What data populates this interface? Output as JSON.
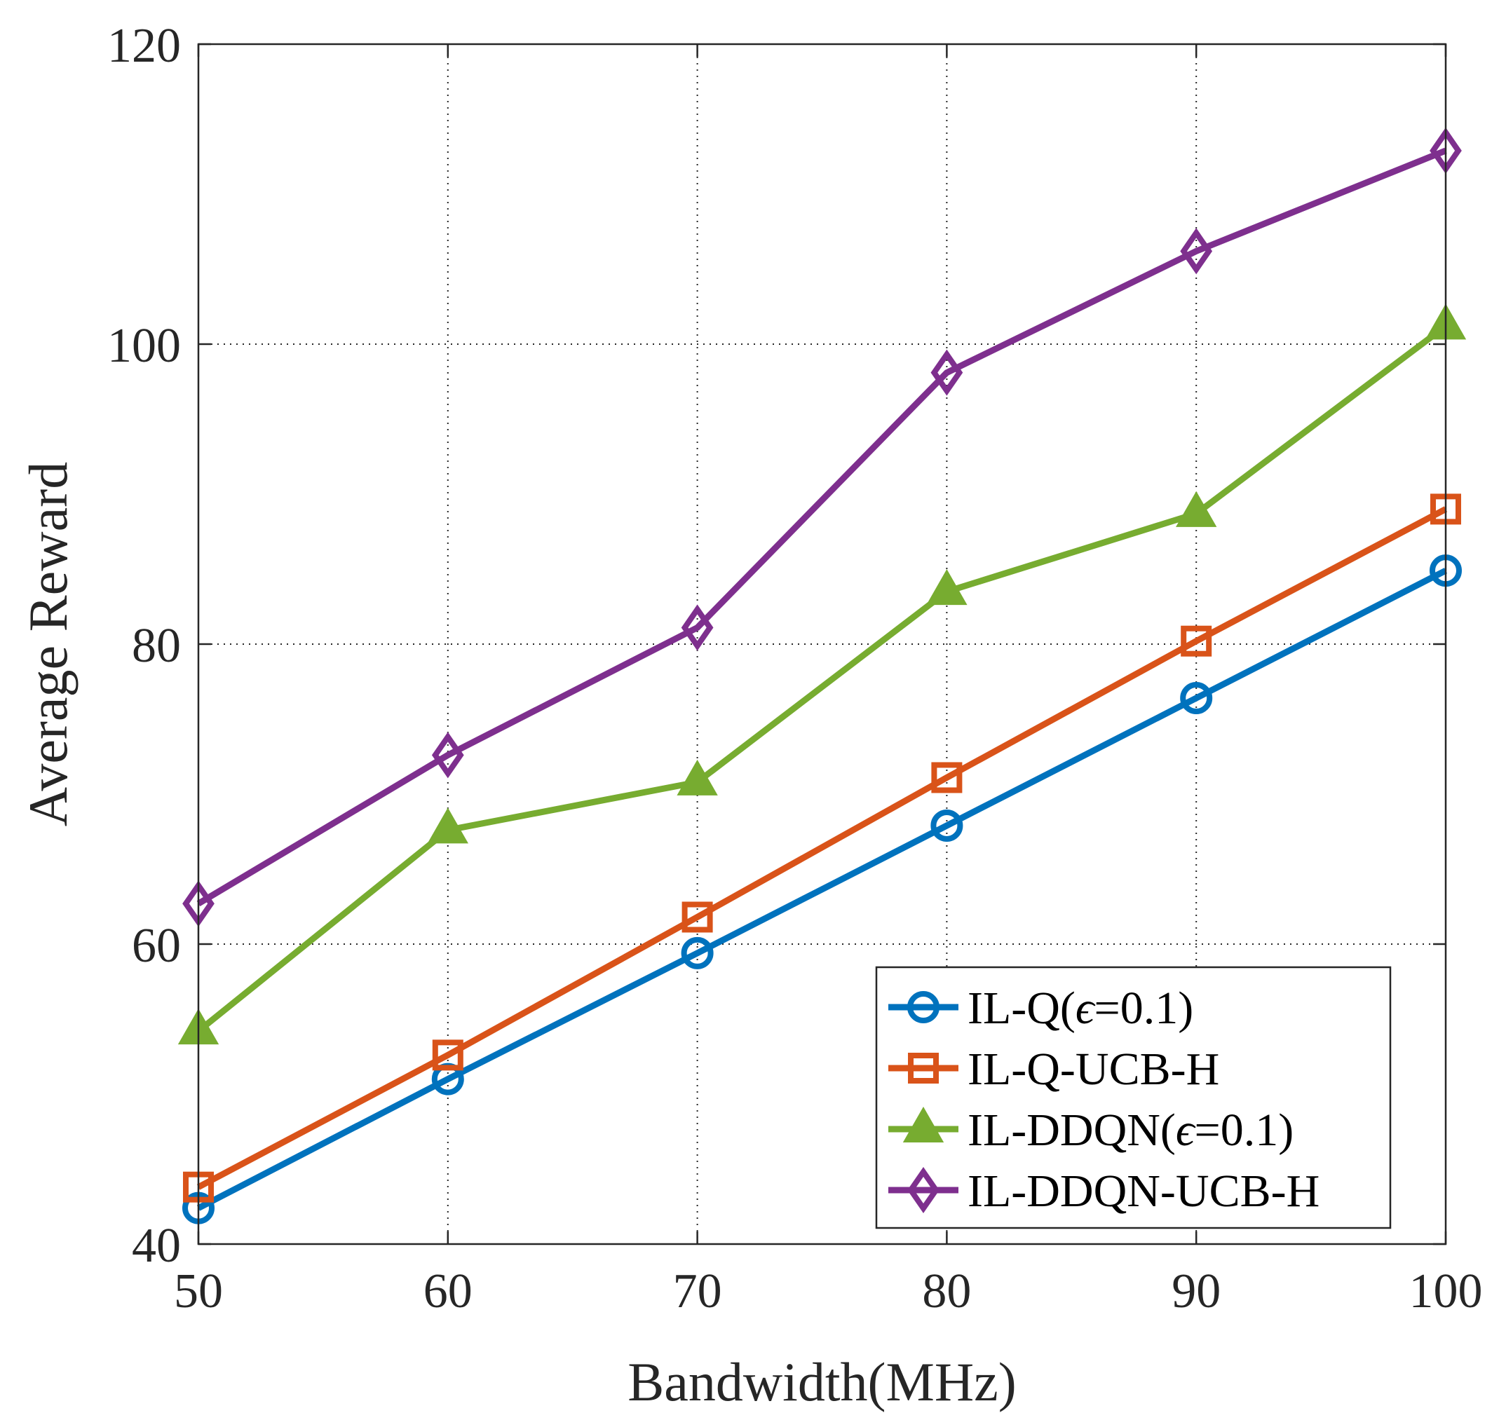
{
  "chart_data": {
    "type": "line",
    "title": "",
    "xlabel": "Bandwidth(MHz)",
    "ylabel": "Average Reward",
    "x": [
      50,
      60,
      70,
      80,
      90,
      100
    ],
    "xlim": [
      50,
      100
    ],
    "ylim": [
      40,
      120
    ],
    "xticks": [
      "50",
      "60",
      "70",
      "80",
      "90",
      "100"
    ],
    "yticks": [
      "40",
      "60",
      "80",
      "100",
      "120"
    ],
    "grid": true,
    "legend_position": "bottom-right",
    "series": [
      {
        "name": "IL-Q(ϵ=0.1)",
        "label_parts": [
          "IL-Q(",
          "ϵ",
          "=0.1)"
        ],
        "values": [
          42.4,
          51.0,
          59.4,
          67.9,
          76.4,
          84.9
        ],
        "color": "#0072BD",
        "marker": "circle"
      },
      {
        "name": "IL-Q-UCB-H",
        "label_parts": [
          "IL-Q-UCB-H"
        ],
        "values": [
          43.8,
          52.6,
          61.8,
          71.1,
          80.2,
          89.0
        ],
        "color": "#D95319",
        "marker": "square"
      },
      {
        "name": "IL-DDQN(ϵ=0.1)",
        "label_parts": [
          "IL-DDQN(",
          "ϵ",
          "=0.1)"
        ],
        "values": [
          54.2,
          67.6,
          70.8,
          83.5,
          88.7,
          101.2
        ],
        "color": "#77AC30",
        "marker": "triangle"
      },
      {
        "name": "IL-DDQN-UCB-H",
        "label_parts": [
          "IL-DDQN-UCB-H"
        ],
        "values": [
          62.7,
          72.6,
          81.1,
          98.1,
          106.2,
          112.9
        ],
        "color": "#7E2F8E",
        "marker": "diamond"
      }
    ]
  }
}
